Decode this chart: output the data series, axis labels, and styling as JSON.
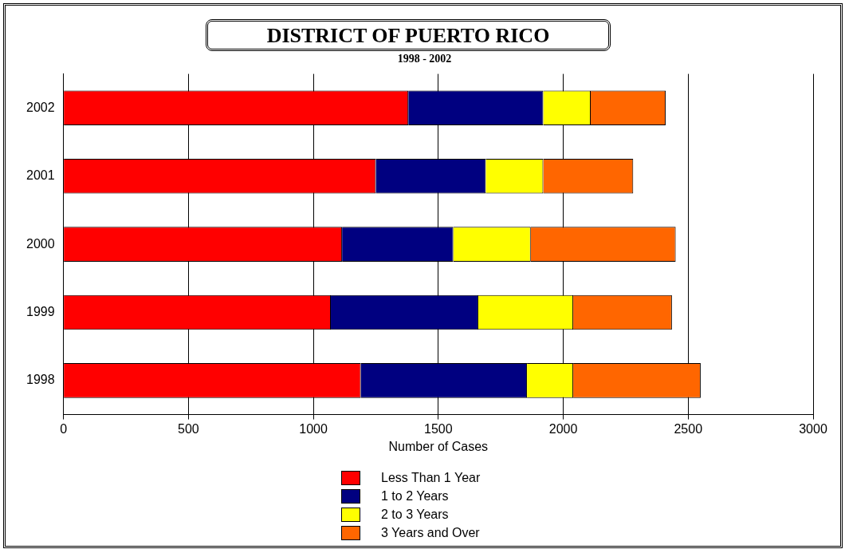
{
  "chart_data": {
    "type": "bar",
    "orientation": "horizontal",
    "stacked": true,
    "title": "DISTRICT OF PUERTO RICO",
    "subtitle": "1998 - 2002",
    "xlabel": "Number of Cases",
    "categories": [
      "2002",
      "2001",
      "2000",
      "1999",
      "1998"
    ],
    "series": [
      {
        "name": "Less Than 1 Year",
        "color": "#ff0000",
        "values": [
          1380,
          1250,
          1115,
          1070,
          1190
        ]
      },
      {
        "name": "1 to 2 Years",
        "color": "#000080",
        "values": [
          540,
          440,
          445,
          590,
          665
        ]
      },
      {
        "name": "2 to 3 Years",
        "color": "#ffff00",
        "values": [
          190,
          230,
          310,
          380,
          185
        ]
      },
      {
        "name": "3 Years and Over",
        "color": "#ff6600",
        "values": [
          300,
          360,
          580,
          395,
          510
        ]
      }
    ],
    "xlim": [
      0,
      3000
    ],
    "xticks": [
      0,
      500,
      1000,
      1500,
      2000,
      2500,
      3000
    ],
    "grid": "x",
    "legend": "bottom"
  }
}
